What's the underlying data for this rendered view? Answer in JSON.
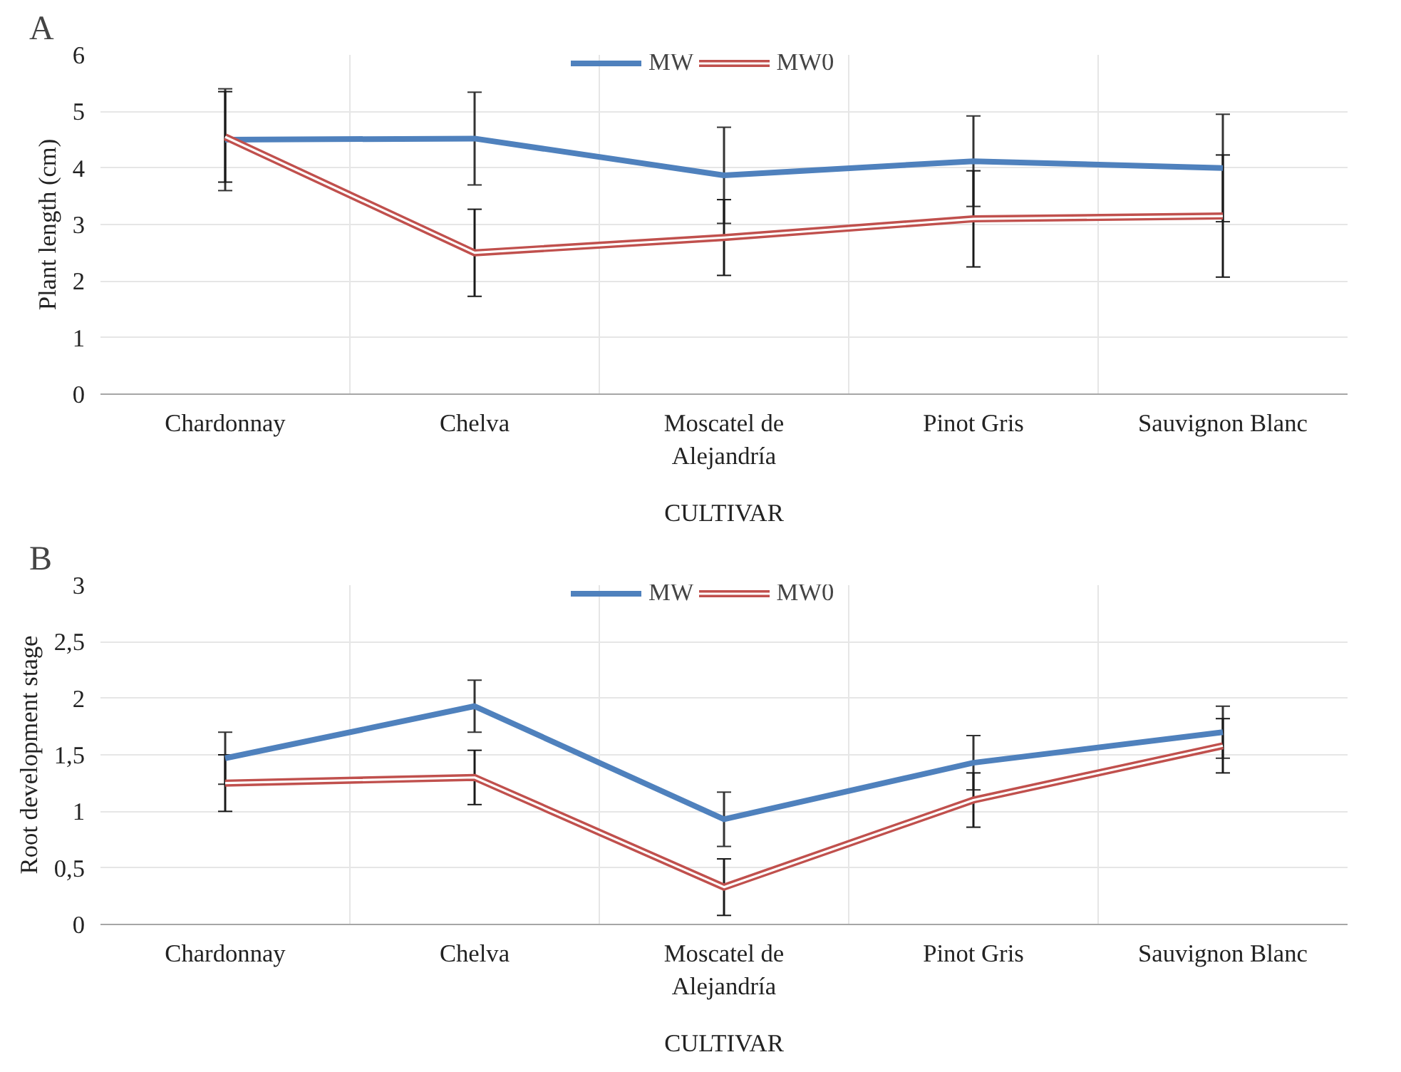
{
  "chart_data": [
    {
      "type": "line",
      "annotations": [
        "A"
      ],
      "xlabel": "CULTIVAR",
      "ylabel": "Plant length (cm)",
      "categories": [
        "Chardonnay",
        "Chelva",
        "Moscatel de Alejandría",
        "Pinot Gris",
        "Sauvignon Blanc"
      ],
      "ylim": [
        0,
        6
      ],
      "yticks": [
        0,
        1,
        2,
        3,
        4,
        5,
        6
      ],
      "grid": true,
      "legend": "top",
      "line_style": "solid",
      "series": [
        {
          "name": "MW",
          "color": "#4f81bd",
          "values": [
            4.5,
            4.52,
            3.87,
            4.12,
            4.0
          ],
          "errors": [
            0.9,
            0.82,
            0.85,
            0.8,
            0.95
          ]
        },
        {
          "name": "MW0",
          "color": "#c0504d",
          "values": [
            4.55,
            2.5,
            2.77,
            3.1,
            3.15
          ],
          "errors": [
            0.8,
            0.77,
            0.67,
            0.85,
            1.08
          ]
        }
      ]
    },
    {
      "type": "line",
      "annotations": [
        "B"
      ],
      "xlabel": "CULTIVAR",
      "ylabel": "Root development stage",
      "categories": [
        "Chardonnay",
        "Chelva",
        "Moscatel de Alejandría",
        "Pinot Gris",
        "Sauvignon Blanc"
      ],
      "ylim": [
        0,
        3
      ],
      "yticks": [
        0,
        {
          "value": 0.5,
          "label": "0,5"
        },
        1,
        {
          "value": 1.5,
          "label": "1,5"
        },
        2,
        {
          "value": 2.5,
          "label": "2,5"
        },
        3
      ],
      "grid": true,
      "legend": "top",
      "line_style": "solid",
      "series": [
        {
          "name": "MW",
          "color": "#4f81bd",
          "values": [
            1.47,
            1.93,
            0.93,
            1.43,
            1.7
          ],
          "errors": [
            0.23,
            0.23,
            0.24,
            0.24,
            0.23
          ]
        },
        {
          "name": "MW0",
          "color": "#c0504d",
          "values": [
            1.25,
            1.3,
            0.33,
            1.1,
            1.58
          ],
          "errors": [
            0.25,
            0.24,
            0.25,
            0.24,
            0.24
          ]
        }
      ]
    }
  ]
}
